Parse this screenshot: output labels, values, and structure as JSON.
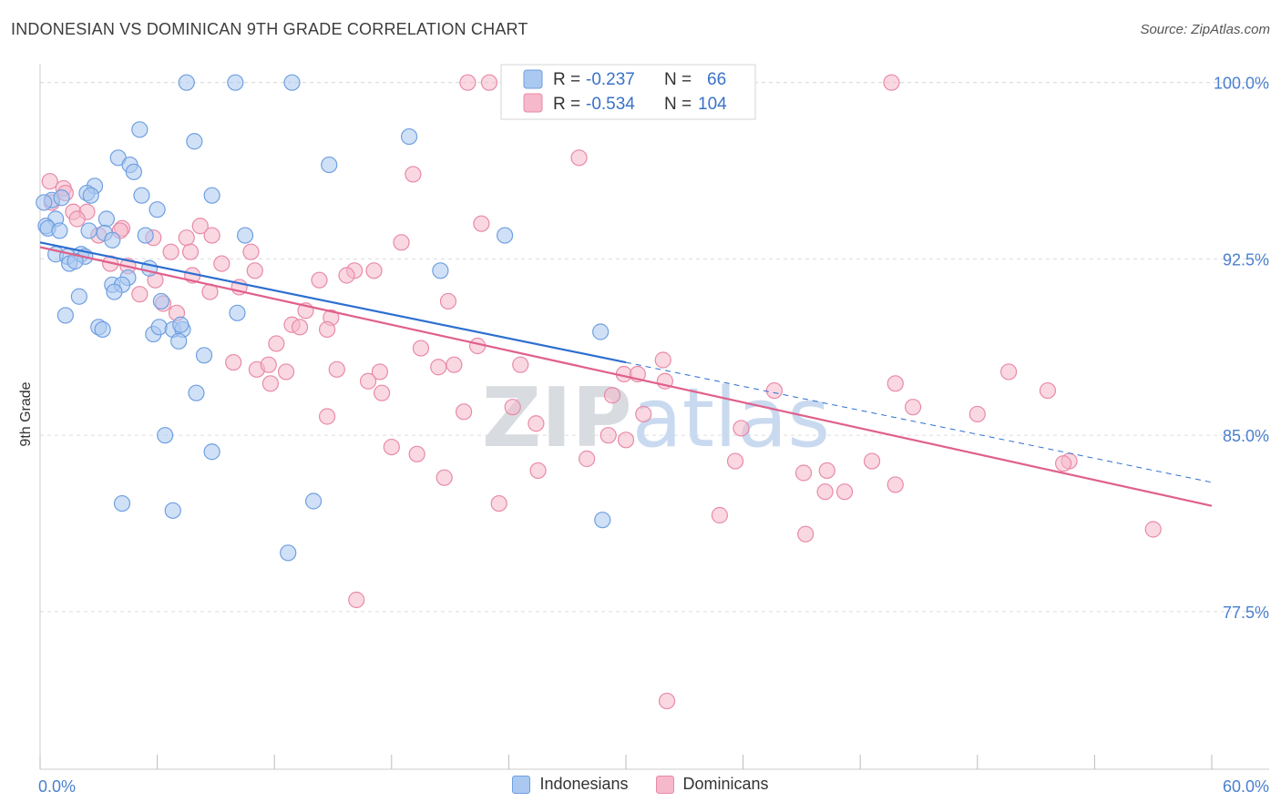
{
  "header": {
    "title": "INDONESIAN VS DOMINICAN 9TH GRADE CORRELATION CHART",
    "source": "Source: ZipAtlas.com"
  },
  "chart_data": {
    "type": "scatter",
    "title": "INDONESIAN VS DOMINICAN 9TH GRADE CORRELATION CHART",
    "xlabel": "",
    "ylabel": "9th Grade",
    "xlim": [
      0,
      60
    ],
    "ylim": [
      70.8,
      100.8
    ],
    "x_tick_labels": [
      "0.0%",
      "60.0%"
    ],
    "y_ticks": [
      77.5,
      85.0,
      92.5,
      100.0
    ],
    "y_tick_labels": [
      "77.5%",
      "85.0%",
      "92.5%",
      "100.0%"
    ],
    "grid": true,
    "watermark": "ZIPatlas",
    "legend_stats": [
      {
        "name": "Indonesians",
        "r_label": "R =",
        "r": "-0.237",
        "n_label": "N =",
        "n": "66"
      },
      {
        "name": "Dominicans",
        "r_label": "R =",
        "r": "-0.534",
        "n_label": "N =",
        "n": "104"
      }
    ],
    "series": [
      {
        "name": "Indonesians",
        "color": "#6f9fe0",
        "fill": "#aac8f0",
        "line_color": "#2d6fd0",
        "trend": {
          "x0": 0,
          "y0": 93.2,
          "x1": 30,
          "y1": 88.1,
          "dash_x1": 60,
          "dash_y1": 83.0
        },
        "points": [
          [
            7.5,
            100.0
          ],
          [
            10.0,
            100.0
          ],
          [
            12.9,
            100.0
          ],
          [
            5.1,
            98.0
          ],
          [
            7.9,
            97.5
          ],
          [
            18.9,
            97.7
          ],
          [
            4.0,
            96.8
          ],
          [
            4.6,
            96.5
          ],
          [
            4.8,
            96.2
          ],
          [
            14.8,
            96.5
          ],
          [
            2.8,
            95.6
          ],
          [
            2.4,
            95.3
          ],
          [
            2.6,
            95.2
          ],
          [
            0.6,
            95.0
          ],
          [
            1.1,
            95.1
          ],
          [
            5.2,
            95.2
          ],
          [
            8.8,
            95.2
          ],
          [
            6.0,
            94.6
          ],
          [
            0.2,
            94.9
          ],
          [
            0.8,
            94.2
          ],
          [
            3.4,
            94.2
          ],
          [
            0.3,
            93.9
          ],
          [
            0.4,
            93.8
          ],
          [
            1.0,
            93.7
          ],
          [
            2.5,
            93.7
          ],
          [
            3.3,
            93.6
          ],
          [
            5.4,
            93.5
          ],
          [
            3.7,
            93.3
          ],
          [
            10.5,
            93.5
          ],
          [
            23.8,
            93.5
          ],
          [
            0.8,
            92.7
          ],
          [
            1.4,
            92.6
          ],
          [
            2.1,
            92.7
          ],
          [
            2.3,
            92.6
          ],
          [
            1.5,
            92.3
          ],
          [
            1.8,
            92.4
          ],
          [
            5.6,
            92.1
          ],
          [
            20.5,
            92.0
          ],
          [
            4.5,
            91.7
          ],
          [
            3.7,
            91.4
          ],
          [
            4.2,
            91.4
          ],
          [
            3.8,
            91.1
          ],
          [
            2.0,
            90.9
          ],
          [
            6.2,
            90.7
          ],
          [
            1.3,
            90.1
          ],
          [
            10.1,
            90.2
          ],
          [
            3.0,
            89.6
          ],
          [
            3.2,
            89.5
          ],
          [
            5.8,
            89.3
          ],
          [
            6.1,
            89.6
          ],
          [
            6.8,
            89.5
          ],
          [
            7.3,
            89.5
          ],
          [
            7.2,
            89.7
          ],
          [
            7.1,
            89.0
          ],
          [
            28.7,
            89.4
          ],
          [
            8.4,
            88.4
          ],
          [
            8.0,
            86.8
          ],
          [
            6.4,
            85.0
          ],
          [
            8.8,
            84.3
          ],
          [
            14.0,
            82.2
          ],
          [
            4.2,
            82.1
          ],
          [
            6.8,
            81.8
          ],
          [
            28.8,
            81.4
          ],
          [
            12.7,
            80.0
          ]
        ]
      },
      {
        "name": "Dominicans",
        "color": "#e88aa8",
        "fill": "#f6b8cb",
        "line_color": "#e0608a",
        "trend": {
          "x0": 0,
          "y0": 93.0,
          "x1": 60,
          "y1": 82.0
        },
        "points": [
          [
            21.9,
            100.0
          ],
          [
            23.0,
            100.0
          ],
          [
            32.0,
            100.0
          ],
          [
            43.6,
            100.0
          ],
          [
            27.6,
            96.8
          ],
          [
            19.1,
            96.1
          ],
          [
            0.5,
            95.8
          ],
          [
            1.2,
            95.5
          ],
          [
            1.3,
            95.3
          ],
          [
            0.6,
            94.9
          ],
          [
            1.7,
            94.5
          ],
          [
            2.4,
            94.5
          ],
          [
            1.9,
            94.2
          ],
          [
            22.6,
            94.0
          ],
          [
            8.2,
            93.9
          ],
          [
            3.0,
            93.5
          ],
          [
            4.2,
            93.8
          ],
          [
            4.1,
            93.7
          ],
          [
            5.8,
            93.4
          ],
          [
            7.5,
            93.4
          ],
          [
            8.8,
            93.5
          ],
          [
            18.5,
            93.2
          ],
          [
            6.7,
            92.8
          ],
          [
            7.7,
            92.8
          ],
          [
            10.8,
            92.8
          ],
          [
            3.6,
            92.3
          ],
          [
            4.5,
            92.2
          ],
          [
            9.3,
            92.3
          ],
          [
            11.0,
            92.0
          ],
          [
            16.1,
            92.0
          ],
          [
            17.1,
            92.0
          ],
          [
            7.8,
            91.8
          ],
          [
            15.7,
            91.8
          ],
          [
            5.9,
            91.6
          ],
          [
            14.3,
            91.6
          ],
          [
            10.2,
            91.3
          ],
          [
            8.7,
            91.1
          ],
          [
            5.1,
            91.0
          ],
          [
            6.3,
            90.6
          ],
          [
            20.9,
            90.7
          ],
          [
            7.0,
            90.2
          ],
          [
            13.6,
            90.3
          ],
          [
            14.9,
            90.0
          ],
          [
            12.9,
            89.7
          ],
          [
            13.3,
            89.6
          ],
          [
            14.7,
            89.5
          ],
          [
            12.1,
            88.9
          ],
          [
            19.5,
            88.7
          ],
          [
            22.4,
            88.8
          ],
          [
            9.9,
            88.1
          ],
          [
            31.9,
            88.2
          ],
          [
            24.6,
            88.0
          ],
          [
            11.1,
            87.8
          ],
          [
            11.7,
            88.0
          ],
          [
            20.4,
            87.9
          ],
          [
            21.2,
            88.0
          ],
          [
            15.2,
            87.8
          ],
          [
            12.6,
            87.7
          ],
          [
            17.4,
            87.7
          ],
          [
            29.9,
            87.6
          ],
          [
            30.6,
            87.6
          ],
          [
            32.0,
            87.3
          ],
          [
            49.6,
            87.7
          ],
          [
            16.8,
            87.3
          ],
          [
            11.8,
            87.2
          ],
          [
            43.8,
            87.2
          ],
          [
            17.5,
            86.8
          ],
          [
            29.3,
            86.7
          ],
          [
            37.6,
            86.9
          ],
          [
            51.6,
            86.9
          ],
          [
            24.2,
            86.2
          ],
          [
            44.7,
            86.2
          ],
          [
            21.7,
            86.0
          ],
          [
            30.9,
            85.9
          ],
          [
            14.7,
            85.8
          ],
          [
            48.0,
            85.9
          ],
          [
            25.4,
            85.5
          ],
          [
            35.9,
            85.3
          ],
          [
            29.1,
            85.0
          ],
          [
            30.0,
            84.8
          ],
          [
            18.0,
            84.5
          ],
          [
            19.3,
            84.2
          ],
          [
            28.0,
            84.0
          ],
          [
            35.6,
            83.9
          ],
          [
            42.6,
            83.9
          ],
          [
            52.7,
            83.9
          ],
          [
            52.4,
            83.8
          ],
          [
            25.5,
            83.5
          ],
          [
            39.1,
            83.4
          ],
          [
            40.3,
            83.5
          ],
          [
            20.7,
            83.2
          ],
          [
            43.8,
            82.9
          ],
          [
            40.2,
            82.6
          ],
          [
            41.2,
            82.6
          ],
          [
            23.5,
            82.1
          ],
          [
            34.8,
            81.6
          ],
          [
            57.0,
            81.0
          ],
          [
            39.2,
            80.8
          ],
          [
            16.2,
            78.0
          ],
          [
            32.1,
            73.7
          ]
        ]
      }
    ]
  }
}
